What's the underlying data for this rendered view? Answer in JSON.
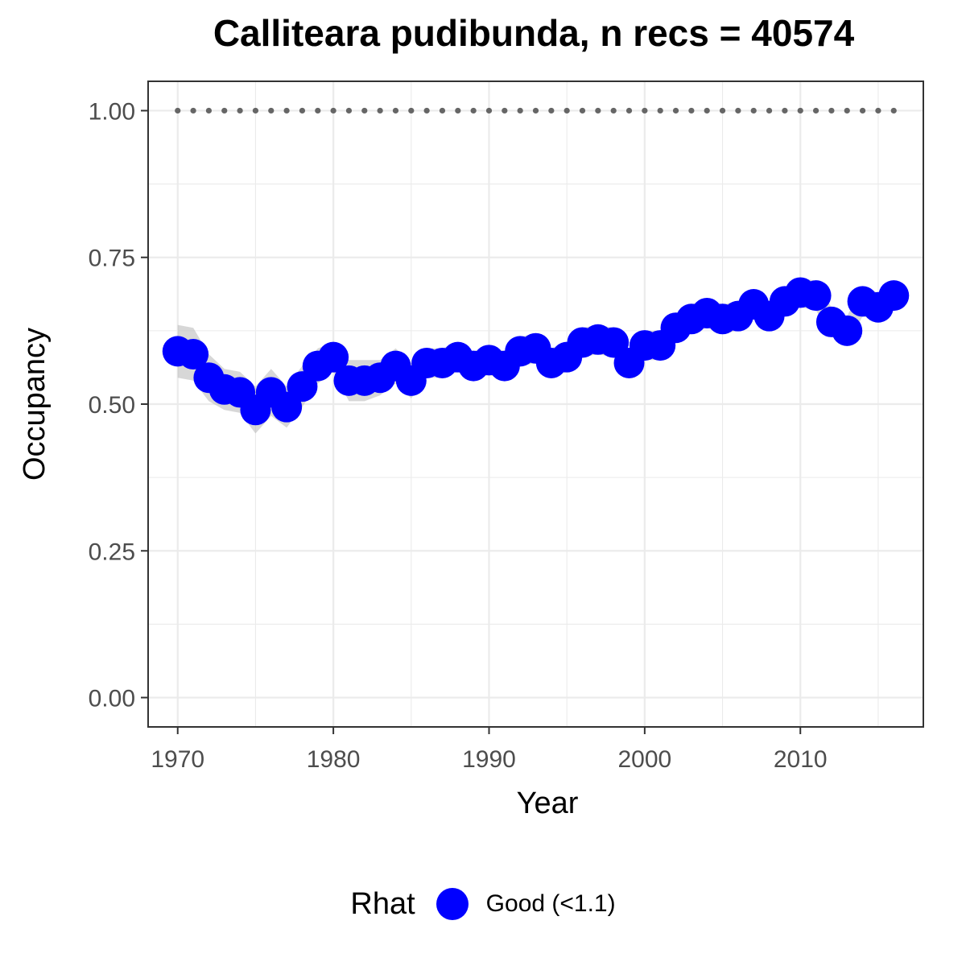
{
  "chart_data": {
    "type": "scatter",
    "title": "Calliteara pudibunda, n recs = 40574",
    "xlabel": "Year",
    "ylabel": "Occupancy",
    "xlim": [
      1968.1,
      2017.9
    ],
    "ylim": [
      -0.05,
      1.05
    ],
    "xticks": [
      1970,
      1980,
      1990,
      2000,
      2010
    ],
    "yticks": [
      0.0,
      0.25,
      0.5,
      0.75,
      1.0
    ],
    "ytick_labels": [
      "0.00",
      "0.25",
      "0.50",
      "0.75",
      "1.00"
    ],
    "grid": true,
    "legend_position": "bottom",
    "legend": {
      "title": "Rhat",
      "entries": [
        {
          "label": "Good (<1.1)",
          "color": "#0000ff"
        }
      ]
    },
    "reference_line": {
      "y": 1.0,
      "style": "dotted",
      "color": "#666666"
    },
    "band_color": "#bdbdbd",
    "series": [
      {
        "name": "Good (<1.1)",
        "color": "#0000ff",
        "x": [
          1970,
          1971,
          1972,
          1973,
          1974,
          1975,
          1976,
          1977,
          1978,
          1979,
          1980,
          1981,
          1982,
          1983,
          1984,
          1985,
          1986,
          1987,
          1988,
          1989,
          1990,
          1991,
          1992,
          1993,
          1994,
          1995,
          1996,
          1997,
          1998,
          1999,
          2000,
          2001,
          2002,
          2003,
          2004,
          2005,
          2006,
          2007,
          2008,
          2009,
          2010,
          2011,
          2012,
          2013,
          2014,
          2015,
          2016
        ],
        "y": [
          0.59,
          0.585,
          0.545,
          0.525,
          0.52,
          0.49,
          0.52,
          0.495,
          0.53,
          0.565,
          0.58,
          0.54,
          0.54,
          0.545,
          0.565,
          0.54,
          0.57,
          0.57,
          0.58,
          0.565,
          0.575,
          0.565,
          0.59,
          0.595,
          0.57,
          0.58,
          0.605,
          0.61,
          0.605,
          0.57,
          0.6,
          0.6,
          0.63,
          0.645,
          0.655,
          0.645,
          0.65,
          0.67,
          0.65,
          0.675,
          0.69,
          0.685,
          0.64,
          0.625,
          0.675,
          0.665,
          0.685
        ],
        "lower": [
          0.545,
          0.54,
          0.505,
          0.49,
          0.485,
          0.45,
          0.48,
          0.46,
          0.495,
          0.535,
          0.555,
          0.505,
          0.505,
          0.515,
          0.535,
          0.51,
          0.545,
          0.545,
          0.555,
          0.54,
          0.55,
          0.54,
          0.565,
          0.57,
          0.545,
          0.555,
          0.58,
          0.585,
          0.58,
          0.545,
          0.575,
          0.575,
          0.605,
          0.62,
          0.63,
          0.62,
          0.625,
          0.645,
          0.625,
          0.65,
          0.665,
          0.66,
          0.615,
          0.6,
          0.65,
          0.64,
          0.66
        ],
        "upper": [
          0.635,
          0.63,
          0.585,
          0.56,
          0.555,
          0.53,
          0.56,
          0.53,
          0.565,
          0.595,
          0.605,
          0.575,
          0.575,
          0.575,
          0.595,
          0.57,
          0.595,
          0.595,
          0.605,
          0.59,
          0.6,
          0.59,
          0.615,
          0.62,
          0.595,
          0.605,
          0.63,
          0.635,
          0.63,
          0.595,
          0.625,
          0.625,
          0.655,
          0.67,
          0.68,
          0.67,
          0.675,
          0.695,
          0.675,
          0.7,
          0.715,
          0.71,
          0.665,
          0.65,
          0.7,
          0.69,
          0.71
        ]
      }
    ]
  }
}
